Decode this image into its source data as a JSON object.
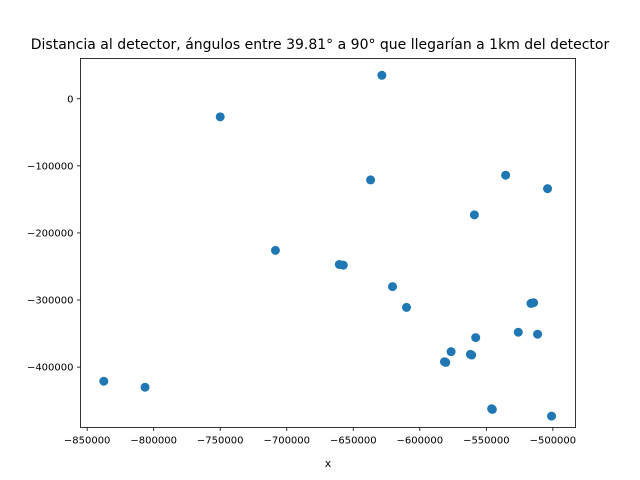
{
  "chart_data": {
    "type": "scatter",
    "title": "Distancia al detector, ángulos entre 39.81° a 90° que llegarían a 1km del detector",
    "xlabel": "x",
    "ylabel": "",
    "xlim": [
      -855000,
      -483000
    ],
    "ylim": [
      -490000,
      60000
    ],
    "xticks": [
      -850000,
      -800000,
      -750000,
      -700000,
      -650000,
      -600000,
      -550000,
      -500000
    ],
    "xtick_labels": [
      "−850000",
      "−800000",
      "−750000",
      "−700000",
      "−650000",
      "−600000",
      "−550000",
      "−500000"
    ],
    "yticks": [
      0,
      -100000,
      -200000,
      -300000,
      -400000
    ],
    "ytick_labels": [
      "0",
      "−100000",
      "−200000",
      "−300000",
      "−400000"
    ],
    "color": "#1f77b4",
    "grid": false,
    "points": [
      {
        "x": -628500,
        "y": 35000
      },
      {
        "x": -750000,
        "y": -27000
      },
      {
        "x": -637000,
        "y": -121000
      },
      {
        "x": -535500,
        "y": -114000
      },
      {
        "x": -504000,
        "y": -134000
      },
      {
        "x": -559000,
        "y": -173000
      },
      {
        "x": -708500,
        "y": -226000
      },
      {
        "x": -660500,
        "y": -247000
      },
      {
        "x": -657500,
        "y": -248000
      },
      {
        "x": -620500,
        "y": -280000
      },
      {
        "x": -610000,
        "y": -311000
      },
      {
        "x": -514500,
        "y": -304000
      },
      {
        "x": -516500,
        "y": -305000
      },
      {
        "x": -526000,
        "y": -348000
      },
      {
        "x": -511500,
        "y": -351000
      },
      {
        "x": -558000,
        "y": -356000
      },
      {
        "x": -576500,
        "y": -377000
      },
      {
        "x": -562000,
        "y": -381000
      },
      {
        "x": -561000,
        "y": -382000
      },
      {
        "x": -581500,
        "y": -392000
      },
      {
        "x": -580500,
        "y": -393000
      },
      {
        "x": -837500,
        "y": -421000
      },
      {
        "x": -806500,
        "y": -430000
      },
      {
        "x": -546000,
        "y": -462000
      },
      {
        "x": -545500,
        "y": -463000
      },
      {
        "x": -501000,
        "y": -473000
      }
    ]
  }
}
